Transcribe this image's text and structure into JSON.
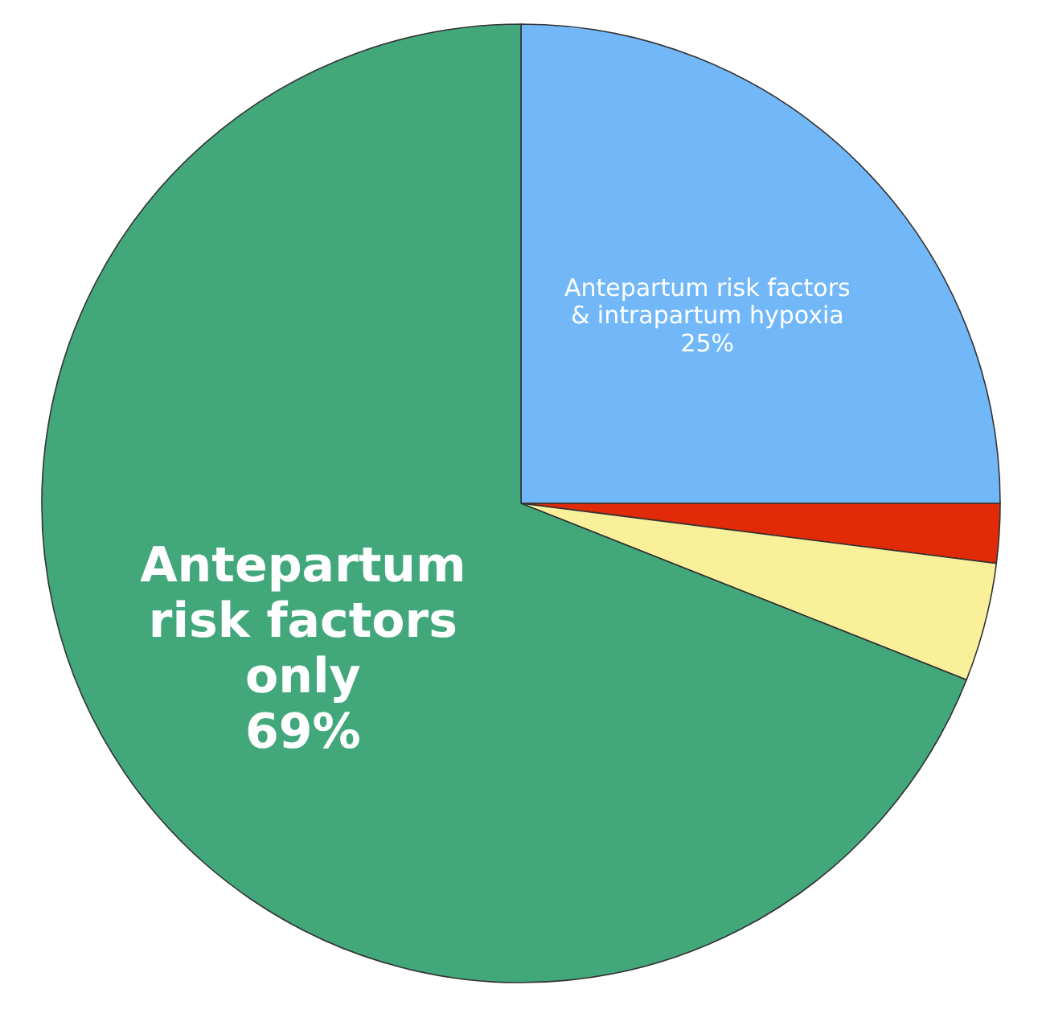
{
  "chart_data": {
    "type": "pie",
    "categories": [
      "Antepartum risk factors\n& intrapartum hypoxia",
      null,
      null,
      "Antepartum\nrisk factors\nonly"
    ],
    "values": [
      25,
      2,
      4,
      69
    ],
    "colors": [
      "#72b8f8",
      "#e02a08",
      "#faf09a",
      "#42a87c"
    ],
    "value_labels": [
      "25%",
      null,
      null,
      "69%"
    ]
  }
}
